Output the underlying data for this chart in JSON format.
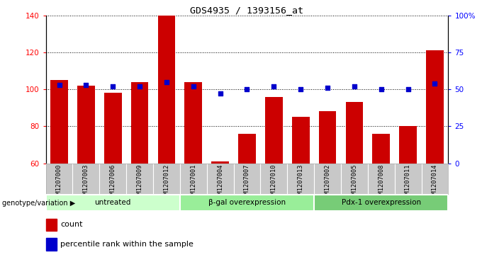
{
  "title": "GDS4935 / 1393156_at",
  "samples": [
    "GSM1207000",
    "GSM1207003",
    "GSM1207006",
    "GSM1207009",
    "GSM1207012",
    "GSM1207001",
    "GSM1207004",
    "GSM1207007",
    "GSM1207010",
    "GSM1207013",
    "GSM1207002",
    "GSM1207005",
    "GSM1207008",
    "GSM1207011",
    "GSM1207014"
  ],
  "counts": [
    105,
    102,
    98,
    104,
    140,
    104,
    61,
    76,
    96,
    85,
    88,
    93,
    76,
    80,
    121
  ],
  "percentiles_pct": [
    53,
    53,
    52,
    52,
    55,
    52,
    47,
    50,
    52,
    50,
    51,
    52,
    50,
    50,
    54
  ],
  "groups": [
    {
      "label": "untreated",
      "start": 0,
      "end": 5
    },
    {
      "label": "β-gal overexpression",
      "start": 5,
      "end": 10
    },
    {
      "label": "Pdx-1 overexpression",
      "start": 10,
      "end": 15
    }
  ],
  "group_colors": [
    "#ccffcc",
    "#99ee99",
    "#77cc77"
  ],
  "ylim_left": [
    60,
    140
  ],
  "ylim_right": [
    0,
    100
  ],
  "yticks_left": [
    60,
    80,
    100,
    120,
    140
  ],
  "yticks_right": [
    0,
    25,
    50,
    75,
    100
  ],
  "ytick_labels_right": [
    "0",
    "25",
    "50",
    "75",
    "100%"
  ],
  "bar_color": "#cc0000",
  "dot_color": "#0000cc",
  "bar_width": 0.65,
  "grid_color": "black",
  "tick_area_color": "#c8c8c8",
  "xlabel_row": "genotype/variation"
}
